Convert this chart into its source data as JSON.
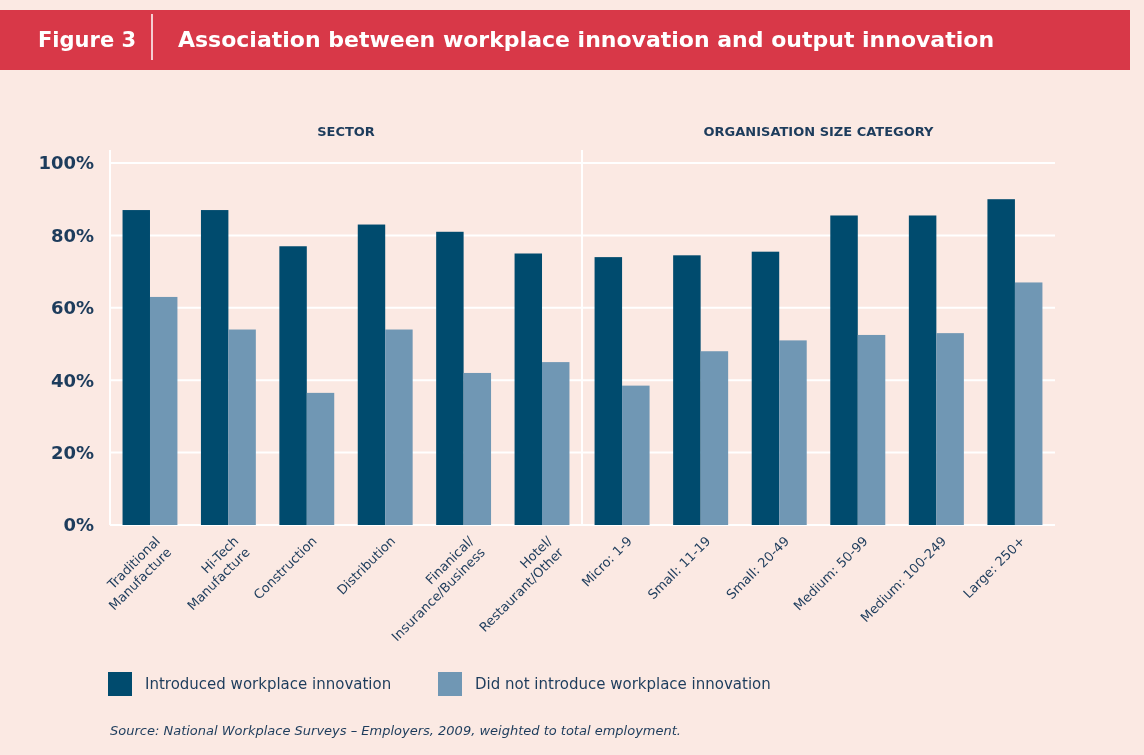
{
  "chart_data": [
    {
      "type": "bar",
      "title": "Association between workplace innovation and output innovation",
      "subtitle": "SECTOR",
      "annotations": [
        "Figure 3",
        "Source: National Workplace Surveys – Employers, 2009, weighted to total employment."
      ],
      "categories": [
        "Traditional\nManufacture",
        "Hi-Tech\nManufacture",
        "Construction",
        "Distribution",
        "Finanical/\nInsurance/Business",
        "Hotel/\nRestaurant/Other"
      ],
      "series": [
        {
          "name": "Introduced workplace innovation",
          "color": "#004b6e",
          "values": [
            87,
            87,
            77,
            83,
            81,
            75
          ]
        },
        {
          "name": "Did not introduce workplace innovation",
          "color": "#7097b4",
          "values": [
            63,
            54,
            36.5,
            54,
            42,
            45
          ]
        }
      ],
      "ylim": [
        0,
        100
      ],
      "yticks": [
        {
          "value": 0,
          "label": "0%"
        },
        {
          "value": 20,
          "label": "20%"
        },
        {
          "value": 40,
          "label": "40%"
        },
        {
          "value": 60,
          "label": "60%"
        },
        {
          "value": 80,
          "label": "80%"
        },
        {
          "value": 100,
          "label": "100%"
        }
      ],
      "grid": "y",
      "legend": "bottom"
    },
    {
      "type": "bar",
      "subtitle": "ORGANISATION SIZE CATEGORY",
      "categories": [
        "Micro: 1-9",
        "Small: 11-19",
        "Small: 20-49",
        "Medium: 50-99",
        "Medium: 100-249",
        "Large: 250+"
      ],
      "series": [
        {
          "color": "#004b6e",
          "values": [
            74,
            74.5,
            75.5,
            85.5,
            85.5,
            90
          ]
        },
        {
          "color": "#7097b4",
          "values": [
            38.5,
            48,
            51,
            52.5,
            53,
            67
          ]
        }
      ],
      "ylim": [
        0,
        100
      ],
      "yticks": [
        {
          "value": 0,
          "label": null
        },
        {
          "value": 20,
          "label": null
        },
        {
          "value": 40,
          "label": null
        },
        {
          "value": 60,
          "label": null
        },
        {
          "value": 80,
          "label": null
        },
        {
          "value": 100,
          "label": null
        }
      ],
      "grid": "y",
      "tick_labels": "x"
    }
  ]
}
